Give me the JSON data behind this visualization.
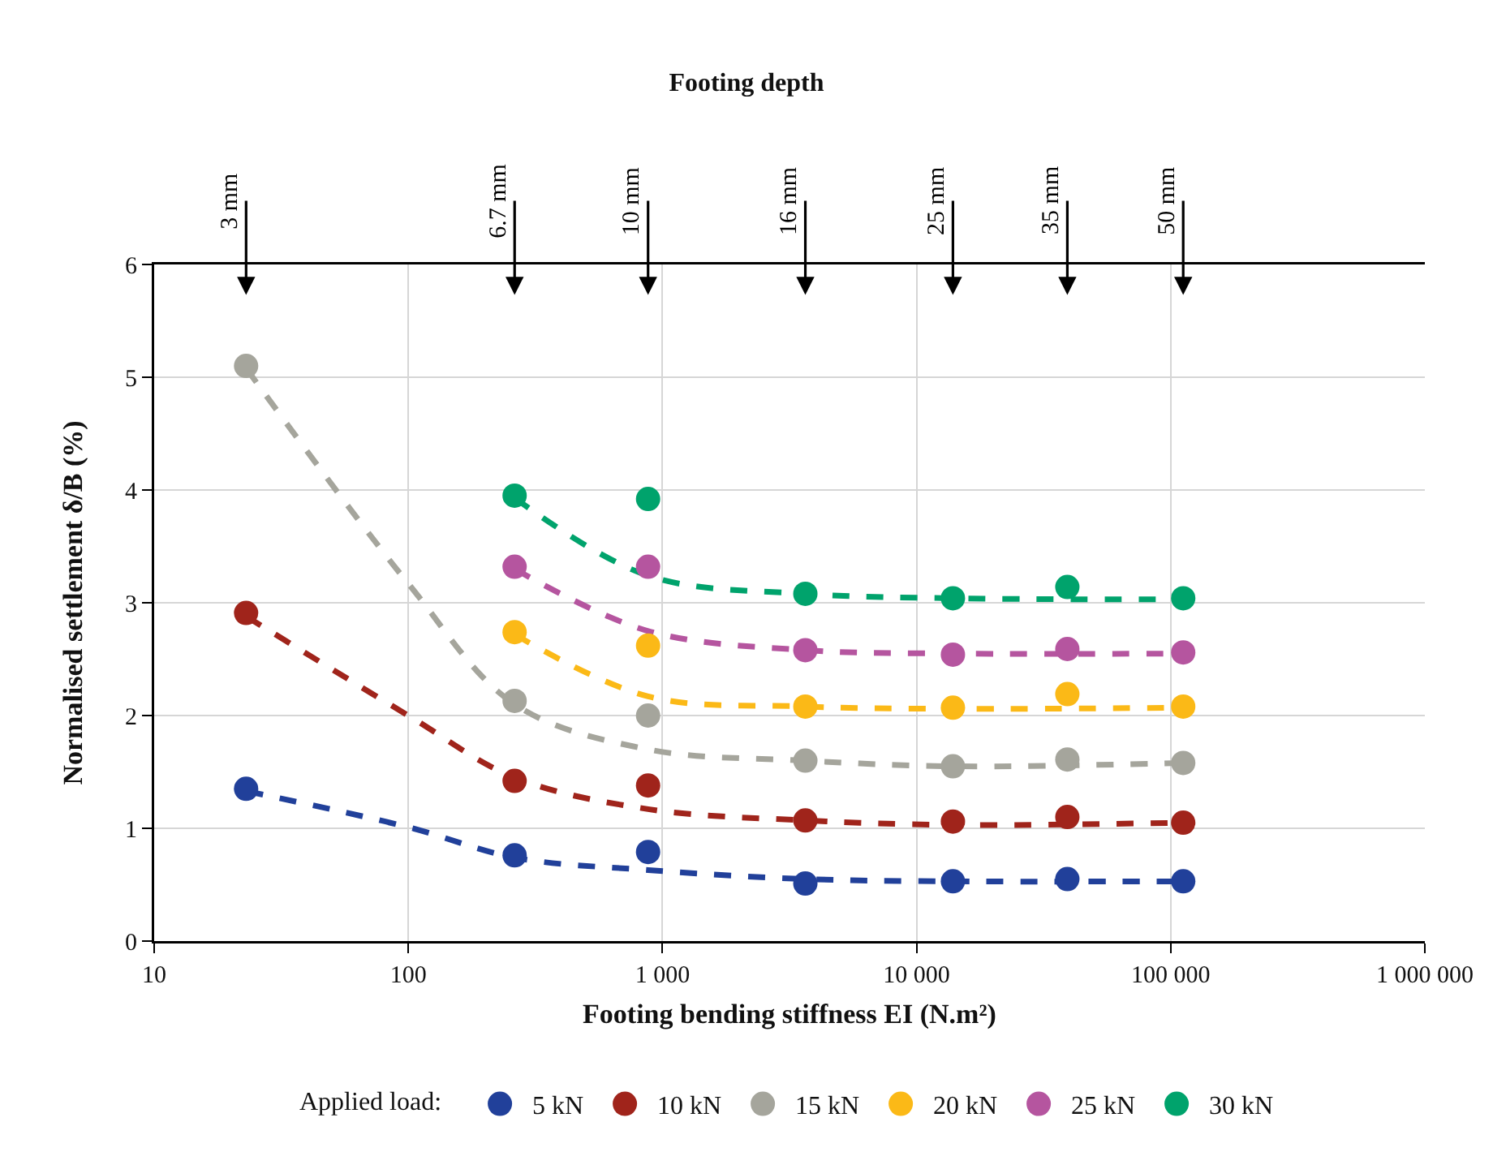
{
  "chart_data": {
    "type": "scatter",
    "title": "Footing depth",
    "annotations": [
      "3 mm",
      "6.7 mm",
      "10 mm",
      "16 mm",
      "25 mm",
      "35 mm",
      "50 mm"
    ],
    "xlabel": "Footing bending stiffness EI (N.m²)",
    "ylabel": "Normalised settlement δ/B (%)",
    "legend_title": "Applied load:",
    "log": "x",
    "grid": true,
    "legend": "bottom",
    "marker": "circle",
    "xlim": [
      10,
      1000000
    ],
    "xticks": [
      10,
      100,
      {
        "value": 1000,
        "label": "1 000"
      },
      {
        "value": 10000,
        "label": "10 000"
      },
      {
        "value": 100000,
        "label": "100 000"
      },
      {
        "value": 1000000,
        "label": "1 000 000"
      }
    ],
    "ylim": [
      0,
      6
    ],
    "yticks": [
      0,
      1,
      2,
      3,
      4,
      5,
      6
    ],
    "series": [
      {
        "type": "line",
        "line_style": "dashed",
        "marker": "none",
        "color": "#21409a",
        "x": [
          23,
          100,
          262,
          878,
          3650,
          13900,
          112000
        ],
        "values": [
          1.33,
          1.01,
          0.74,
          0.63,
          0.55,
          0.53,
          0.53
        ]
      },
      {
        "type": "line",
        "line_style": "dashed",
        "marker": "none",
        "color": "#a0241b",
        "x": [
          23,
          100,
          262,
          878,
          3650,
          13900,
          112000
        ],
        "values": [
          2.88,
          2.0,
          1.45,
          1.17,
          1.07,
          1.03,
          1.05
        ]
      },
      {
        "type": "line",
        "line_style": "dashed",
        "marker": "none",
        "color": "#a5a59c",
        "x": [
          23,
          100,
          262,
          878,
          3650,
          13900,
          112000
        ],
        "values": [
          5.08,
          3.17,
          2.1,
          1.7,
          1.6,
          1.55,
          1.58
        ]
      },
      {
        "type": "line",
        "line_style": "dashed",
        "marker": "none",
        "color": "#fbb917",
        "x": [
          262,
          878,
          3650,
          13900,
          112000
        ],
        "values": [
          2.72,
          2.17,
          2.08,
          2.06,
          2.07
        ]
      },
      {
        "type": "line",
        "line_style": "dashed",
        "marker": "none",
        "color": "#b5559f",
        "x": [
          262,
          878,
          3650,
          13900,
          112000
        ],
        "values": [
          3.3,
          2.75,
          2.58,
          2.55,
          2.55
        ]
      },
      {
        "type": "line",
        "line_style": "dashed",
        "marker": "none",
        "color": "#00a36c",
        "x": [
          262,
          878,
          3650,
          13900,
          112000
        ],
        "values": [
          3.93,
          3.24,
          3.08,
          3.04,
          3.03
        ]
      },
      {
        "name": "5 kN",
        "color": "#21409a",
        "x": [
          23,
          262,
          878,
          3650,
          13900,
          39200,
          112000
        ],
        "values": [
          1.35,
          0.76,
          0.79,
          0.51,
          0.53,
          0.55,
          0.53
        ]
      },
      {
        "name": "10 kN",
        "color": "#a0241b",
        "x": [
          23,
          262,
          878,
          3650,
          13900,
          39200,
          112000
        ],
        "values": [
          2.91,
          1.42,
          1.38,
          1.07,
          1.06,
          1.1,
          1.05
        ]
      },
      {
        "name": "15 kN",
        "color": "#a5a59c",
        "x": [
          23,
          262,
          878,
          3650,
          13900,
          39200,
          112000
        ],
        "values": [
          5.1,
          2.13,
          2.0,
          1.6,
          1.55,
          1.61,
          1.58
        ]
      },
      {
        "name": "20 kN",
        "color": "#fbb917",
        "x": [
          262,
          878,
          3650,
          13900,
          39200,
          112000
        ],
        "values": [
          2.74,
          2.62,
          2.08,
          2.07,
          2.19,
          2.08
        ]
      },
      {
        "name": "25 kN",
        "color": "#b5559f",
        "x": [
          262,
          878,
          3650,
          13900,
          39200,
          112000
        ],
        "values": [
          3.32,
          3.32,
          2.58,
          2.54,
          2.59,
          2.56
        ]
      },
      {
        "name": "30 kN",
        "color": "#00a36c",
        "x": [
          262,
          878,
          3650,
          13900,
          39200,
          112000
        ],
        "values": [
          3.95,
          3.92,
          3.08,
          3.04,
          3.14,
          3.04
        ]
      }
    ]
  }
}
